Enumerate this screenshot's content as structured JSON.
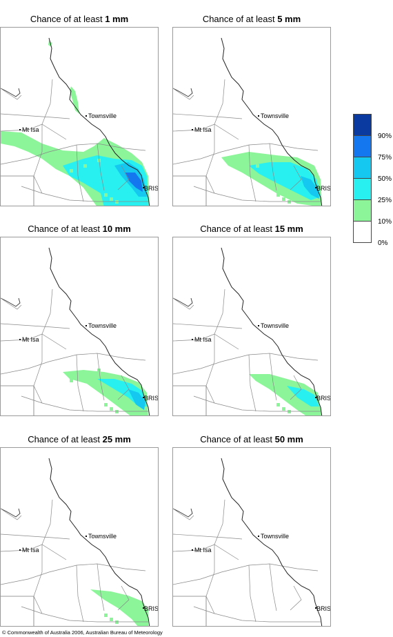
{
  "panels": [
    {
      "prefix": "Chance of at least ",
      "amount": "1 mm"
    },
    {
      "prefix": "Chance of at least ",
      "amount": "5 mm"
    },
    {
      "prefix": "Chance of at least ",
      "amount": "10 mm"
    },
    {
      "prefix": "Chance of at least ",
      "amount": "15 mm"
    },
    {
      "prefix": "Chance of at least ",
      "amount": "25 mm"
    },
    {
      "prefix": "Chance of at least ",
      "amount": "50 mm"
    }
  ],
  "map_labels": {
    "townsville": "Townsville",
    "mt_isa": "Mt Isa",
    "brisbane": "BRIS"
  },
  "legend": {
    "levels": [
      {
        "label": "90%",
        "color": "#0a3aa0"
      },
      {
        "label": "75%",
        "color": "#1477f0"
      },
      {
        "label": "50%",
        "color": "#14c8f0"
      },
      {
        "label": "25%",
        "color": "#28f0f0"
      },
      {
        "label": "10%",
        "color": "#8cf59a"
      },
      {
        "label": "0%",
        "color": "#ffffff"
      }
    ]
  },
  "colors": {
    "band_10": "#8cf59a",
    "band_25": "#28f0f0",
    "band_50": "#14c8f0",
    "band_75": "#1477f0",
    "band_90": "#0a3aa0"
  },
  "footer": {
    "copyright": "© Commonwealth of Australia 2006, Australian Bureau of Meteorology"
  }
}
